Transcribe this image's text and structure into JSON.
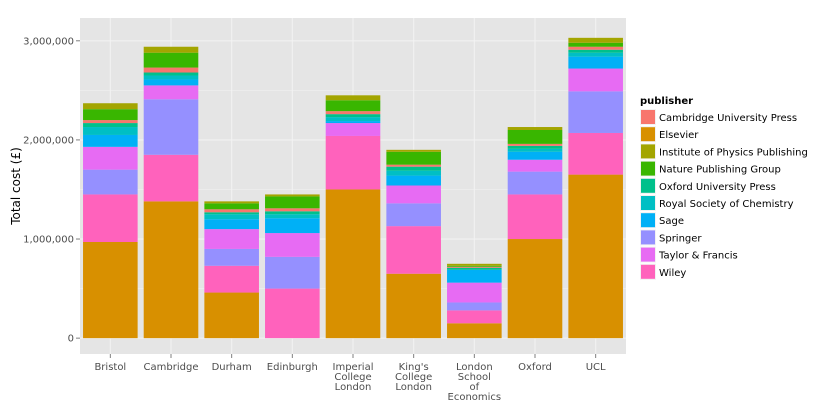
{
  "chart_data": {
    "type": "bar",
    "stacked": true,
    "categories": [
      "Bristol",
      "Cambridge",
      "Durham",
      "Edinburgh",
      "Imperial\nCollege\nLondon",
      "King's\nCollege\nLondon",
      "London\nSchool\nof\nEconomics",
      "Oxford",
      "UCL"
    ],
    "ylabel": "Total cost (£)",
    "xlabel": "",
    "ylim": [
      0,
      3000000
    ],
    "yticks": [
      0,
      1000000,
      2000000,
      3000000
    ],
    "ytick_labels": [
      "0",
      "1,000,000",
      "2,000,000",
      "3,000,000"
    ],
    "grid": true,
    "legend_title": "publisher",
    "legend_position": "right",
    "series": [
      {
        "name": "Elsevier",
        "color": "#D89000",
        "values": [
          970000,
          1380000,
          460000,
          0,
          1500000,
          650000,
          150000,
          1000000,
          1650000
        ]
      },
      {
        "name": "Wiley",
        "color": "#FF62BC",
        "values": [
          480000,
          470000,
          270000,
          500000,
          540000,
          480000,
          130000,
          450000,
          420000
        ]
      },
      {
        "name": "Taylor & Francis",
        "color": "#E76BF3",
        "values": [
          0,
          0,
          0,
          0,
          0,
          0,
          0,
          0,
          0
        ]
      },
      {
        "name": "Springer",
        "color": "#9590FF",
        "values": [
          250000,
          560000,
          170000,
          320000,
          0,
          230000,
          80000,
          230000,
          420000
        ]
      },
      {
        "name": "Taylor & Francis",
        "color": "#E76BF3",
        "values": [
          230000,
          140000,
          200000,
          240000,
          130000,
          180000,
          200000,
          120000,
          230000
        ]
      },
      {
        "name": "Sage",
        "color": "#00B0F6",
        "values": [
          120000,
          60000,
          100000,
          150000,
          20000,
          100000,
          130000,
          80000,
          120000
        ]
      },
      {
        "name": "Royal Society of Chemistry",
        "color": "#00BFC4",
        "values": [
          80000,
          40000,
          50000,
          40000,
          40000,
          50000,
          0,
          30000,
          40000
        ]
      },
      {
        "name": "Oxford University Press",
        "color": "#00C08B",
        "values": [
          40000,
          30000,
          20000,
          30000,
          30000,
          40000,
          20000,
          30000,
          30000
        ]
      },
      {
        "name": "Cambridge University Press",
        "color": "#F8766D",
        "values": [
          30000,
          50000,
          30000,
          30000,
          30000,
          20000,
          10000,
          20000,
          30000
        ]
      },
      {
        "name": "Nature Publishing Group",
        "color": "#39B600",
        "values": [
          110000,
          150000,
          60000,
          120000,
          110000,
          130000,
          10000,
          140000,
          40000
        ]
      },
      {
        "name": "Institute of Physics Publishing",
        "color": "#A3A500",
        "values": [
          60000,
          60000,
          20000,
          20000,
          50000,
          20000,
          20000,
          30000,
          50000
        ]
      }
    ],
    "legend": [
      {
        "name": "Cambridge University Press",
        "color": "#F8766D"
      },
      {
        "name": "Elsevier",
        "color": "#D89000"
      },
      {
        "name": "Institute of Physics Publishing",
        "color": "#A3A500"
      },
      {
        "name": "Nature Publishing Group",
        "color": "#39B600"
      },
      {
        "name": "Oxford University Press",
        "color": "#00C08B"
      },
      {
        "name": "Royal Society of Chemistry",
        "color": "#00BFC4"
      },
      {
        "name": "Sage",
        "color": "#00B0F6"
      },
      {
        "name": "Springer",
        "color": "#9590FF"
      },
      {
        "name": "Taylor & Francis",
        "color": "#E76BF3"
      },
      {
        "name": "Wiley",
        "color": "#FF62BC"
      }
    ]
  }
}
